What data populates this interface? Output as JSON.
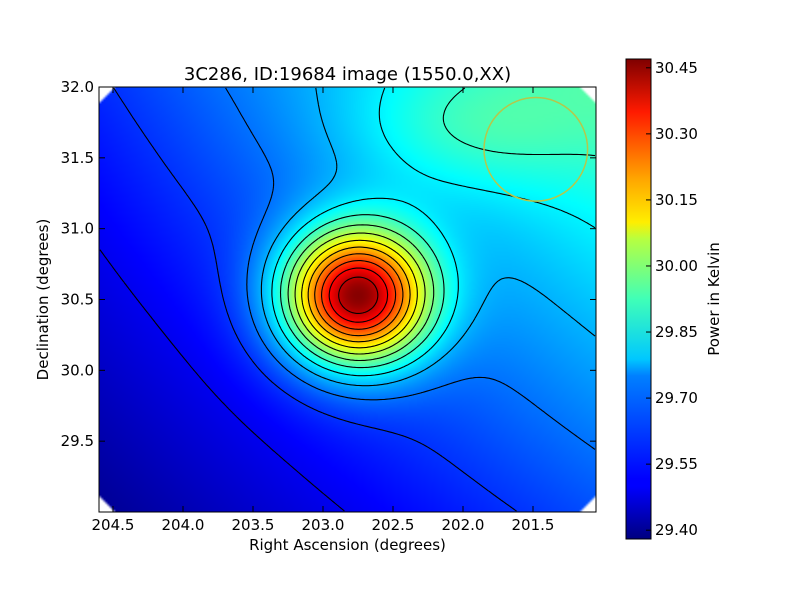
{
  "chart_data": {
    "type": "heatmap",
    "title": "3C286, ID:19684 image (1550.0,XX)",
    "xlabel": "Right Ascension (degrees)",
    "ylabel": "Declination (degrees)",
    "xlim": [
      204.6,
      201.05
    ],
    "ylim": [
      29.0,
      32.0
    ],
    "x_inverted": true,
    "x_ticks": [
      204.5,
      204.0,
      203.5,
      203.0,
      202.5,
      202.0,
      201.5
    ],
    "x_tick_labels": [
      "204.5",
      "204.0",
      "203.5",
      "203.0",
      "202.5",
      "202.0",
      "201.5"
    ],
    "y_ticks": [
      29.5,
      30.0,
      30.5,
      31.0,
      31.5,
      32.0
    ],
    "y_tick_labels": [
      "29.5",
      "30.0",
      "30.5",
      "31.0",
      "31.5",
      "32.0"
    ],
    "peak": {
      "ra": 202.76,
      "dec": 30.52,
      "value": 30.47
    },
    "colorbar": {
      "label": "Power in Kelvin",
      "min": 29.38,
      "max": 30.47,
      "ticks": [
        30.45,
        30.3,
        30.15,
        30.0,
        29.85,
        29.7,
        29.55,
        29.4
      ],
      "tick_labels": [
        "30.45",
        "30.30",
        "30.15",
        "30.00",
        "29.85",
        "29.70",
        "29.55",
        "29.40"
      ],
      "colormap": "jet"
    },
    "contour_count": 14,
    "beam_circle": {
      "ra": 201.48,
      "dec": 31.56,
      "radius_deg": 0.37,
      "color": "#b5c84a"
    },
    "grid": false,
    "legend": "none"
  }
}
